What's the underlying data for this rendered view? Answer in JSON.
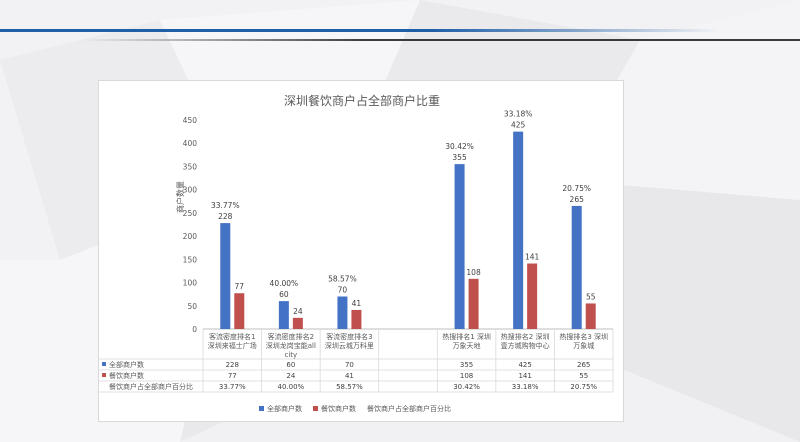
{
  "colors": {
    "series_total": "#4472c4",
    "series_dining": "#c0504d",
    "accent_line": "#1f5fa8",
    "dark_line": "#3a3a3a"
  },
  "chart_data": {
    "type": "bar",
    "title": "深圳餐饮商户占全部商户比重",
    "ylabel": "商户数量",
    "xlabel": "",
    "ylim": [
      0,
      450
    ],
    "yticks": [
      0,
      50,
      100,
      150,
      200,
      250,
      300,
      350,
      400,
      450
    ],
    "grid": false,
    "legend_position": "bottom",
    "categories": [
      [
        "客流密度排名1",
        "深圳来福士广场"
      ],
      [
        "客流密度排名2",
        "深圳龙岗宝能all",
        "city"
      ],
      [
        "客流密度排名3",
        "深圳云城万科里"
      ],
      [],
      [
        "热搜排名1  深圳",
        "万象天地"
      ],
      [
        "热搜排名2  深圳",
        "壹方城购物中心"
      ],
      [
        "热搜排名3  深圳",
        "万象城"
      ]
    ],
    "series": [
      {
        "name": "全部商户数",
        "values": [
          228,
          60,
          70,
          null,
          355,
          425,
          265
        ]
      },
      {
        "name": "餐饮商户数",
        "values": [
          77,
          24,
          41,
          null,
          108,
          141,
          55
        ]
      }
    ],
    "percent_series": {
      "name": "餐饮商户占全部商户百分比",
      "values": [
        "33.77%",
        "40.00%",
        "58.57%",
        "",
        "30.42%",
        "33.18%",
        "20.75%"
      ]
    }
  }
}
